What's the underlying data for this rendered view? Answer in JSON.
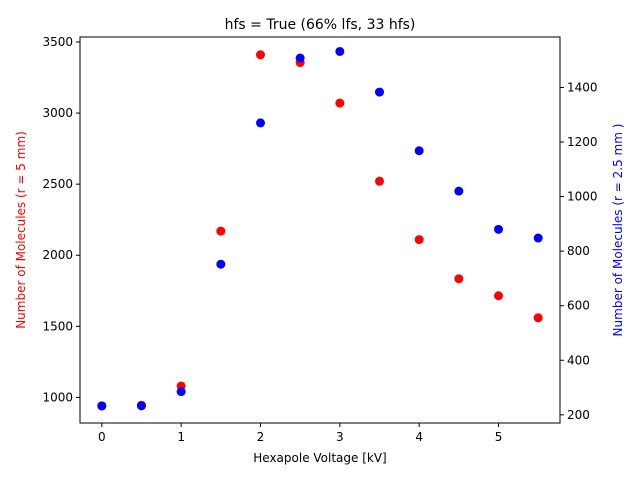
{
  "chart_data": {
    "type": "scatter",
    "title": "hfs = True (66% lfs, 33 hfs)",
    "xlabel": "Hexapole Voltage [kV]",
    "xlim": [
      -0.275,
      5.775
    ],
    "xticks": [
      0,
      1,
      2,
      3,
      4,
      5
    ],
    "grid": false,
    "legend": "none",
    "y_left": {
      "label": "Number of Molecules (r = 5 mm)",
      "color": "#ff0000",
      "lim": [
        820,
        3535
      ],
      "ticks": [
        1000,
        1500,
        2000,
        2500,
        3000,
        3500
      ]
    },
    "y_right": {
      "label": "Number of Molecules (r = 2.5 mm )",
      "color": "#0000ff",
      "lim": [
        170,
        1585
      ],
      "ticks": [
        200,
        400,
        600,
        800,
        1000,
        1200,
        1400
      ]
    },
    "series": [
      {
        "axis": "left",
        "color": "#ff0000",
        "x": [
          0,
          0.5,
          1,
          1.5,
          2,
          2.5,
          3,
          3.5,
          4,
          4.5,
          5,
          5.5
        ],
        "y": [
          940,
          945,
          1080,
          2170,
          3410,
          3355,
          3070,
          2520,
          2110,
          1835,
          1715,
          1560
        ]
      },
      {
        "axis": "right",
        "color": "#0000ff",
        "x": [
          0,
          0.5,
          1,
          1.5,
          2,
          2.5,
          3,
          3.5,
          4,
          4.5,
          5,
          5.5
        ],
        "y": [
          233,
          233,
          285,
          752,
          1270,
          1508,
          1532,
          1383,
          1168,
          1020,
          880,
          848
        ]
      }
    ]
  }
}
